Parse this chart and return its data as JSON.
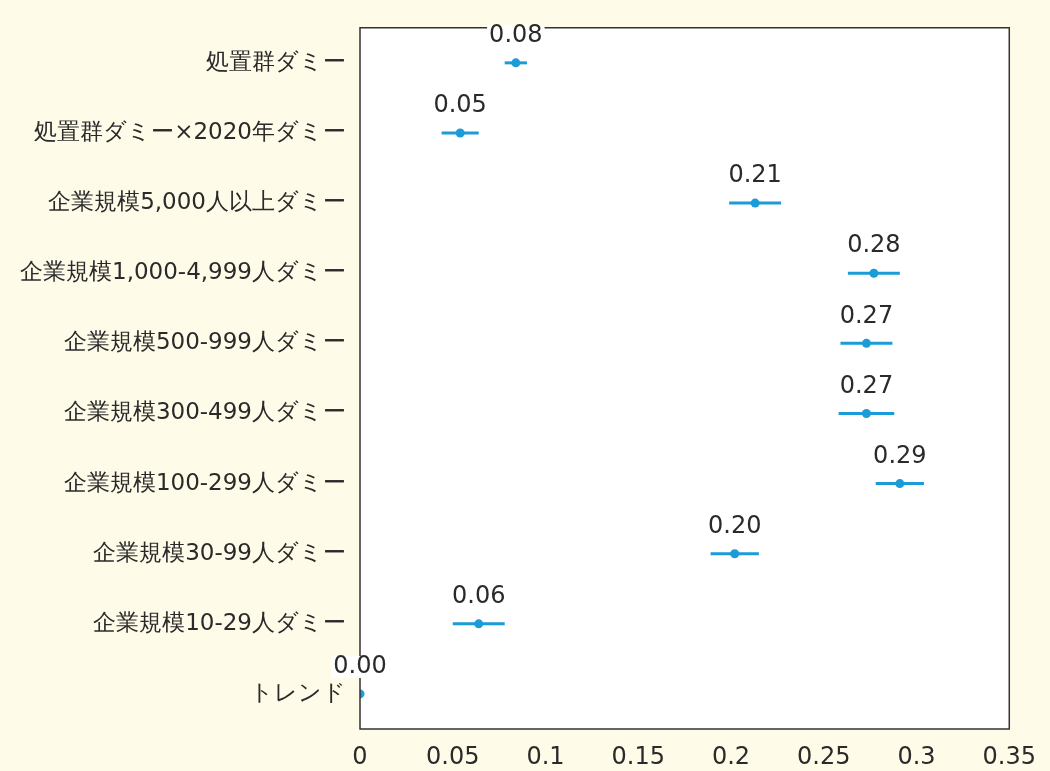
{
  "chart_data": {
    "type": "scatter",
    "orientation": "horizontal",
    "categories": [
      "処置群ダミー",
      "処置群ダミー×2020年ダミー",
      "企業規模5,000人以上ダミー",
      "企業規模1,000-4,999人ダミー",
      "企業規模500-999人ダミー",
      "企業規模300-499人ダミー",
      "企業規模100-299人ダミー",
      "企業規模30-99人ダミー",
      "企業規模10-29人ダミー",
      "トレンド"
    ],
    "values": [
      0.084,
      0.054,
      0.213,
      0.277,
      0.273,
      0.273,
      0.291,
      0.202,
      0.064,
      0
    ],
    "errors": [
      0.006,
      0.01,
      0.014,
      0.014,
      0.014,
      0.015,
      0.013,
      0.013,
      0.014,
      null
    ],
    "value_labels": [
      "0.08",
      "0.05",
      "0.21",
      "0.28",
      "0.27",
      "0.27",
      "0.29",
      "0.20",
      "0.06",
      "0.00"
    ],
    "color": "#1b9bd7",
    "marker": "circle",
    "xlim": [
      0,
      0.35
    ],
    "xticks": [
      0,
      0.05,
      0.1,
      0.15,
      0.2,
      0.25,
      0.3,
      0.35
    ]
  }
}
